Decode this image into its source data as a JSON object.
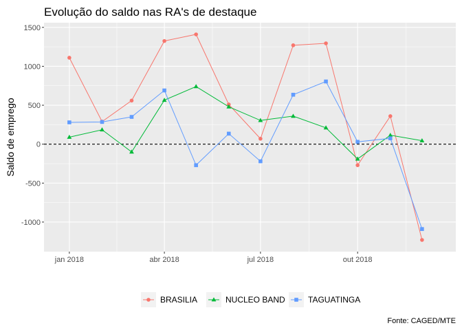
{
  "chart_data": {
    "type": "line",
    "title": "Evolução do saldo nas RA's de destaque",
    "xlabel": "",
    "ylabel": "Saldo de emprego",
    "caption": "Fonte: CAGED/MTE",
    "x": [
      "2018-01",
      "2018-02",
      "2018-03",
      "2018-04",
      "2018-05",
      "2018-06",
      "2018-07",
      "2018-08",
      "2018-09",
      "2018-10",
      "2018-11",
      "2018-12"
    ],
    "x_ticks": [
      {
        "x": "2018-01",
        "label": "jan 2018"
      },
      {
        "x": "2018-04",
        "label": "abr 2018"
      },
      {
        "x": "2018-07",
        "label": "jul 2018"
      },
      {
        "x": "2018-10",
        "label": "out 2018"
      }
    ],
    "xlim": [
      "2017-12-08",
      "2019-01-02"
    ],
    "ylim": [
      -1380,
      1560
    ],
    "y_ticks": [
      1500,
      1000,
      500,
      0,
      -500,
      -1000
    ],
    "reference_line": {
      "y": 0,
      "style": "dashed",
      "color": "#000000"
    },
    "grid": true,
    "legend_position": "bottom",
    "series": [
      {
        "name": "BRASILIA",
        "color": "#F8766D",
        "marker": "circle",
        "values": [
          1110,
          290,
          560,
          1325,
          1410,
          510,
          70,
          1270,
          1295,
          -270,
          360,
          -1230
        ]
      },
      {
        "name": "NUCLEO BAND",
        "color": "#00BA38",
        "marker": "triangle",
        "values": [
          90,
          185,
          -100,
          565,
          740,
          480,
          305,
          360,
          210,
          -190,
          115,
          45
        ]
      },
      {
        "name": "TAGUATINGA",
        "color": "#619CFF",
        "marker": "square",
        "values": [
          280,
          285,
          350,
          690,
          -270,
          135,
          -220,
          635,
          805,
          30,
          75,
          -1090
        ]
      }
    ]
  }
}
